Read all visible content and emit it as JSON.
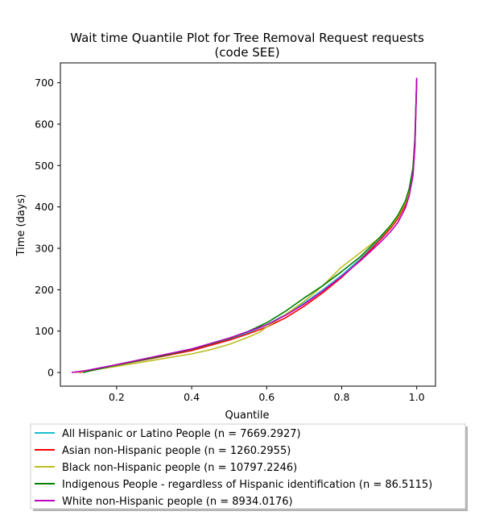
{
  "chart_data": {
    "type": "line",
    "title": "Wait time Quantile Plot for Tree Removal Request  requests",
    "subtitle": "(code SEE)",
    "xlabel": "Quantile",
    "ylabel": "Time (days)",
    "xlim": [
      0.05,
      1.05
    ],
    "ylim": [
      -33,
      748
    ],
    "xticks": [
      0.2,
      0.4,
      0.6,
      0.8,
      1.0
    ],
    "xtick_labels": [
      "0.2",
      "0.4",
      "0.6",
      "0.8",
      "1.0"
    ],
    "yticks": [
      0,
      100,
      200,
      300,
      400,
      500,
      600,
      700
    ],
    "ytick_labels": [
      "0",
      "100",
      "200",
      "300",
      "400",
      "500",
      "600",
      "700"
    ],
    "grid": false,
    "legend_position": "below",
    "series": [
      {
        "name": "All Hispanic or Latino People (n = 7669.2927)",
        "color": "#17becf",
        "x": [
          0.09,
          0.13,
          0.2,
          0.3,
          0.4,
          0.5,
          0.55,
          0.6,
          0.65,
          0.7,
          0.75,
          0.8,
          0.85,
          0.9,
          0.93,
          0.95,
          0.97,
          0.98,
          0.99,
          0.995,
          1.0
        ],
        "y": [
          0,
          5,
          18,
          36,
          55,
          80,
          96,
          115,
          140,
          168,
          200,
          235,
          275,
          320,
          350,
          375,
          410,
          440,
          490,
          560,
          712
        ]
      },
      {
        "name": "Asian non-Hispanic people (n = 1260.2955)",
        "color": "#ff0000",
        "x": [
          0.1,
          0.14,
          0.2,
          0.3,
          0.4,
          0.5,
          0.55,
          0.6,
          0.65,
          0.7,
          0.75,
          0.8,
          0.85,
          0.9,
          0.93,
          0.95,
          0.97,
          0.98,
          0.99,
          0.995,
          1.0
        ],
        "y": [
          0,
          6,
          18,
          35,
          53,
          78,
          93,
          110,
          132,
          160,
          193,
          230,
          272,
          318,
          348,
          372,
          405,
          432,
          478,
          545,
          705
        ]
      },
      {
        "name": "Black non-Hispanic people (n = 10797.2246)",
        "color": "#bcbd22",
        "x": [
          0.09,
          0.13,
          0.2,
          0.3,
          0.4,
          0.45,
          0.5,
          0.55,
          0.58,
          0.6,
          0.65,
          0.7,
          0.75,
          0.8,
          0.85,
          0.9,
          0.93,
          0.95,
          0.97,
          0.98,
          0.99,
          0.995,
          1.0
        ],
        "y": [
          0,
          5,
          15,
          30,
          45,
          55,
          68,
          85,
          97,
          110,
          140,
          172,
          210,
          255,
          290,
          325,
          352,
          376,
          410,
          438,
          485,
          552,
          708
        ]
      },
      {
        "name": "Indigenous People - regardless of Hispanic identification (n = 86.5115)",
        "color": "#008000",
        "x": [
          0.11,
          0.15,
          0.2,
          0.3,
          0.4,
          0.5,
          0.55,
          0.6,
          0.65,
          0.7,
          0.75,
          0.8,
          0.85,
          0.9,
          0.93,
          0.95,
          0.97,
          0.98,
          0.99,
          0.995,
          1.0
        ],
        "y": [
          0,
          8,
          18,
          36,
          56,
          82,
          99,
          120,
          148,
          180,
          210,
          244,
          280,
          325,
          355,
          380,
          415,
          445,
          495,
          565,
          710
        ]
      },
      {
        "name": "White non-Hispanic people (n = 8934.0176)",
        "color": "#bf00bf",
        "x": [
          0.08,
          0.12,
          0.2,
          0.3,
          0.4,
          0.5,
          0.55,
          0.6,
          0.65,
          0.7,
          0.75,
          0.8,
          0.85,
          0.9,
          0.93,
          0.95,
          0.97,
          0.98,
          0.99,
          0.995,
          1.0
        ],
        "y": [
          0,
          5,
          19,
          38,
          57,
          83,
          99,
          115,
          138,
          165,
          197,
          232,
          270,
          312,
          340,
          363,
          398,
          428,
          475,
          548,
          712
        ]
      }
    ]
  }
}
